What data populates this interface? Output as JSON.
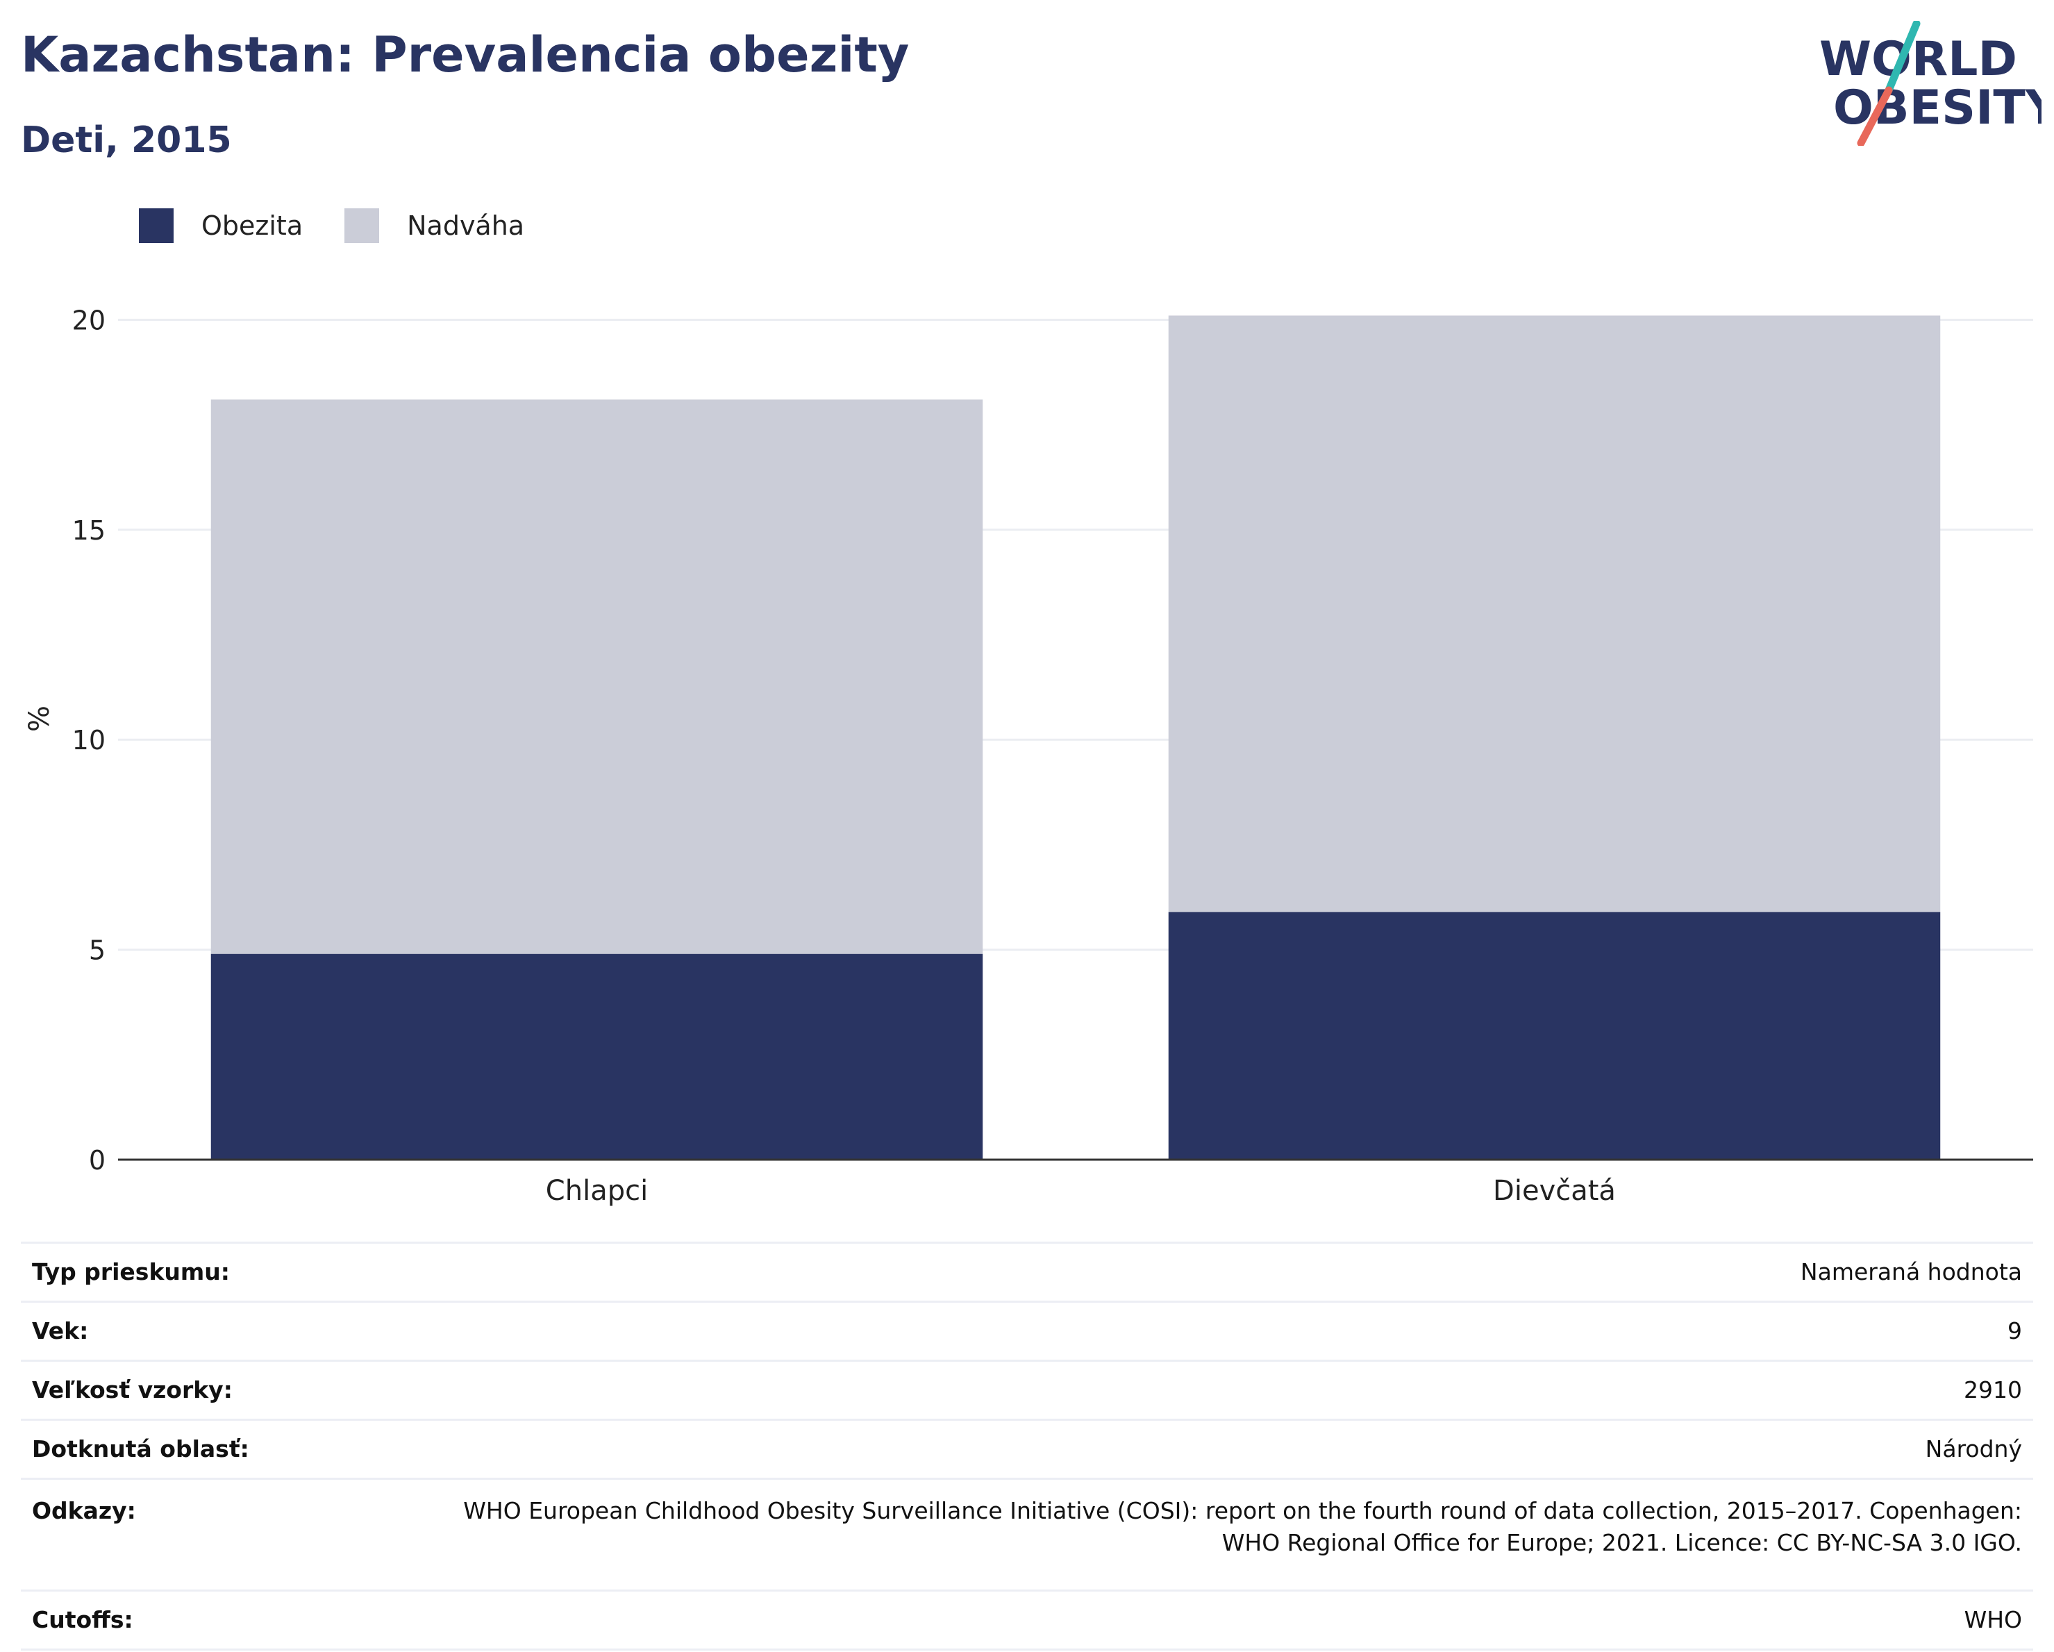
{
  "header": {
    "title": "Kazachstan: Prevalencia obezity",
    "subtitle": "Deti, 2015"
  },
  "logo": {
    "line1": "WORLD",
    "line2": "OBESITY",
    "icon": "world-obesity-logo",
    "accent_teal": "#2fb7b0",
    "accent_coral": "#e8685a"
  },
  "chart_data": {
    "type": "bar",
    "stacked": true,
    "categories": [
      "Chlapci",
      "Dievčatá"
    ],
    "series": [
      {
        "name": "Obezita",
        "values": [
          4.9,
          5.9
        ],
        "color": "#293462"
      },
      {
        "name": "Nadváha",
        "values": [
          13.2,
          14.2
        ],
        "color": "#cbcdd8"
      }
    ],
    "ylabel": "%",
    "xlabel": "",
    "ylim": [
      0,
      21
    ],
    "yticks": [
      0,
      5,
      10,
      15,
      20
    ],
    "grid": true,
    "legend_position": "top-left"
  },
  "info": {
    "rows": [
      {
        "key": "Typ prieskumu:",
        "value": "Nameraná hodnota"
      },
      {
        "key": "Vek:",
        "value": "9"
      },
      {
        "key": "Veľkosť vzorky:",
        "value": "2910"
      },
      {
        "key": "Dotknutá oblasť:",
        "value": "Národný"
      },
      {
        "key": "Odkazy:",
        "value_lines": [
          "WHO European Childhood Obesity Surveillance Initiative (COSI): report on the fourth round of data collection, 2015–2017. Copenhagen:",
          "WHO Regional Office for Europe; 2021. Licence: CC BY-NC-SA 3.0 IGO."
        ]
      },
      {
        "key": "Cutoffs:",
        "value": "WHO"
      }
    ]
  }
}
